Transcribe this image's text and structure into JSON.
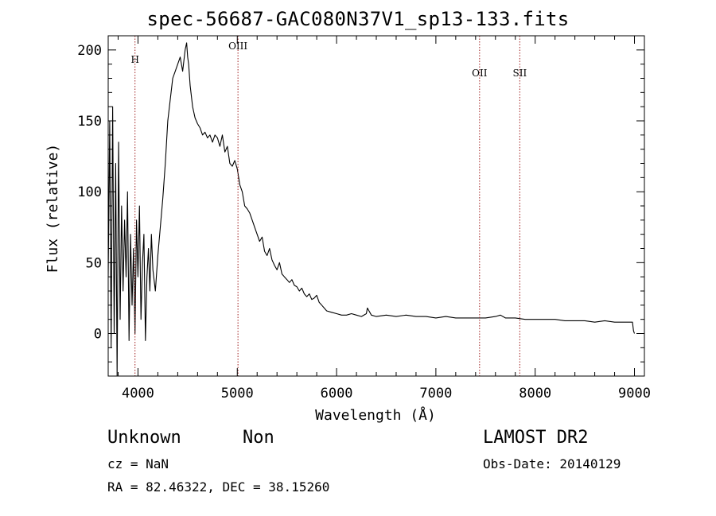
{
  "chart_data": {
    "type": "line",
    "title": "spec-56687-GAC080N37V1_sp13-133.fits",
    "xlabel": "Wavelength (Å)",
    "ylabel": "Flux (relative)",
    "xlim": [
      3700,
      9100
    ],
    "ylim": [
      -30,
      210
    ],
    "xticks": [
      4000,
      5000,
      6000,
      7000,
      8000,
      9000
    ],
    "yticks": [
      0,
      50,
      100,
      150,
      200
    ],
    "grid": false,
    "line_color": "#000000",
    "marker_color": "#a02020",
    "lines": [
      {
        "label": "H",
        "wavelength": 3970
      },
      {
        "label": "OIII",
        "wavelength": 5007
      },
      {
        "label": "OII",
        "wavelength": 7440
      },
      {
        "label": "SII",
        "wavelength": 7845
      }
    ],
    "series": [
      {
        "x": [
          3700,
          3715,
          3730,
          3745,
          3760,
          3775,
          3790,
          3805,
          3820,
          3835,
          3850,
          3865,
          3880,
          3895,
          3910,
          3925,
          3940,
          3955,
          3970,
          3985,
          4000,
          4015,
          4030,
          4045,
          4060,
          4075,
          4090,
          4105,
          4120,
          4135,
          4150,
          4175,
          4200,
          4225,
          4250,
          4275,
          4300,
          4325,
          4350,
          4375,
          4400,
          4425,
          4450,
          4475,
          4490,
          4500,
          4510,
          4525,
          4550,
          4575,
          4600,
          4625,
          4650,
          4675,
          4700,
          4725,
          4750,
          4775,
          4800,
          4825,
          4850,
          4875,
          4900,
          4925,
          4950,
          4975,
          5000,
          5025,
          5050,
          5075,
          5100,
          5125,
          5150,
          5175,
          5200,
          5225,
          5250,
          5275,
          5300,
          5325,
          5350,
          5375,
          5400,
          5425,
          5450,
          5475,
          5500,
          5525,
          5550,
          5575,
          5600,
          5625,
          5650,
          5675,
          5700,
          5725,
          5750,
          5775,
          5800,
          5825,
          5850,
          5875,
          5900,
          5950,
          6000,
          6050,
          6100,
          6150,
          6200,
          6250,
          6300,
          6310,
          6350,
          6400,
          6500,
          6600,
          6700,
          6800,
          6900,
          7000,
          7100,
          7200,
          7300,
          7400,
          7500,
          7600,
          7650,
          7700,
          7800,
          7900,
          8000,
          8100,
          8200,
          8300,
          8400,
          8500,
          8600,
          8700,
          8800,
          8900,
          8980,
          8990,
          9000
        ],
        "y": [
          40,
          150,
          -10,
          160,
          0,
          120,
          -30,
          135,
          10,
          90,
          30,
          80,
          40,
          100,
          -5,
          70,
          20,
          60,
          0,
          80,
          40,
          90,
          10,
          50,
          70,
          -5,
          40,
          60,
          30,
          70,
          45,
          30,
          55,
          75,
          95,
          120,
          150,
          165,
          180,
          185,
          190,
          195,
          185,
          200,
          205,
          195,
          190,
          175,
          160,
          152,
          148,
          145,
          140,
          142,
          138,
          140,
          135,
          140,
          138,
          132,
          140,
          128,
          132,
          120,
          118,
          122,
          116,
          105,
          100,
          90,
          88,
          85,
          80,
          75,
          70,
          65,
          68,
          58,
          55,
          60,
          52,
          48,
          45,
          50,
          42,
          40,
          38,
          36,
          38,
          34,
          33,
          30,
          32,
          28,
          26,
          28,
          24,
          25,
          27,
          22,
          20,
          18,
          16,
          15,
          14,
          13,
          13,
          14,
          13,
          12,
          14,
          18,
          13,
          12,
          13,
          12,
          13,
          12,
          12,
          11,
          12,
          11,
          11,
          11,
          11,
          12,
          13,
          11,
          11,
          10,
          10,
          10,
          10,
          9,
          9,
          9,
          8,
          9,
          8,
          8,
          8,
          2,
          0
        ]
      }
    ]
  },
  "footer": {
    "class": "Unknown",
    "subclass": "Non",
    "survey": "LAMOST DR2",
    "cz": "cz = NaN",
    "obs_date": "Obs-Date: 20140129",
    "radec": "RA =  82.46322, DEC =  38.15260"
  }
}
